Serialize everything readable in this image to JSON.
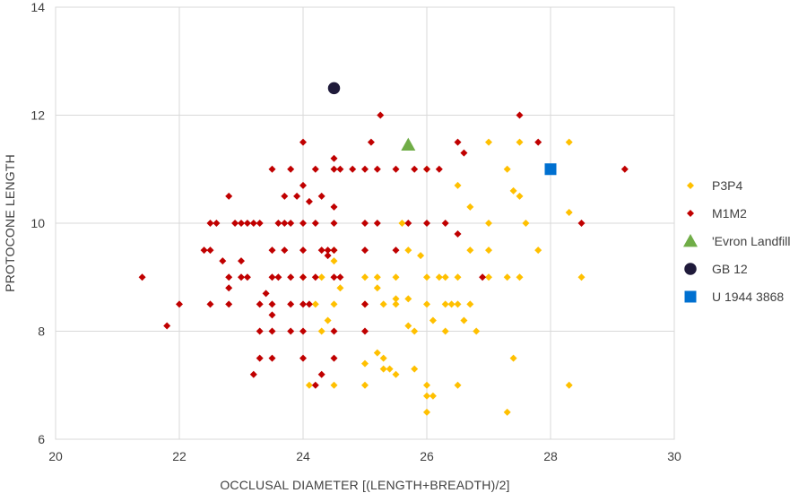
{
  "chart_data": {
    "type": "scatter",
    "xlabel": "OCCLUSAL DIAMETER [(LENGTH+BREADTH)/2]",
    "ylabel": "PROTOCONE LENGTH",
    "xlim": [
      20,
      30
    ],
    "ylim": [
      6,
      14
    ],
    "x_ticks": [
      20,
      22,
      24,
      26,
      28,
      30
    ],
    "y_ticks": [
      6,
      8,
      10,
      12,
      14
    ],
    "grid": true,
    "legend_position": "right",
    "series": [
      {
        "name": "P3P4",
        "marker": "diamond",
        "color": "#FFC000",
        "points": [
          [
            24.0,
            9.0
          ],
          [
            24.2,
            8.5
          ],
          [
            24.3,
            8.0
          ],
          [
            24.4,
            8.2
          ],
          [
            24.5,
            9.5
          ],
          [
            24.5,
            9.3
          ],
          [
            24.5,
            8.5
          ],
          [
            24.5,
            7.0
          ],
          [
            24.6,
            8.8
          ],
          [
            24.1,
            7.0
          ],
          [
            24.3,
            9.0
          ],
          [
            25.0,
            9.0
          ],
          [
            25.0,
            8.5
          ],
          [
            25.0,
            7.4
          ],
          [
            25.0,
            7.0
          ],
          [
            25.2,
            9.0
          ],
          [
            25.2,
            7.6
          ],
          [
            25.3,
            8.5
          ],
          [
            25.3,
            7.5
          ],
          [
            25.3,
            7.3
          ],
          [
            25.4,
            7.3
          ],
          [
            25.5,
            9.0
          ],
          [
            25.5,
            8.6
          ],
          [
            25.5,
            7.2
          ],
          [
            25.7,
            9.5
          ],
          [
            25.7,
            8.1
          ],
          [
            25.8,
            8.0
          ],
          [
            25.8,
            7.3
          ],
          [
            25.5,
            8.5
          ],
          [
            25.2,
            8.8
          ],
          [
            25.7,
            8.6
          ],
          [
            26.0,
            11.0
          ],
          [
            26.0,
            9.0
          ],
          [
            26.0,
            8.5
          ],
          [
            26.0,
            7.0
          ],
          [
            26.0,
            6.5
          ],
          [
            26.0,
            6.8
          ],
          [
            26.1,
            6.8
          ],
          [
            26.1,
            8.2
          ],
          [
            26.2,
            9.0
          ],
          [
            26.3,
            8.5
          ],
          [
            26.3,
            8.0
          ],
          [
            26.5,
            10.7
          ],
          [
            26.5,
            9.0
          ],
          [
            26.5,
            8.5
          ],
          [
            26.5,
            7.0
          ],
          [
            26.6,
            8.2
          ],
          [
            26.7,
            10.3
          ],
          [
            26.7,
            9.5
          ],
          [
            26.7,
            8.5
          ],
          [
            26.8,
            8.0
          ],
          [
            26.3,
            9.0
          ],
          [
            26.4,
            8.5
          ],
          [
            27.0,
            11.5
          ],
          [
            27.0,
            10.0
          ],
          [
            27.0,
            9.5
          ],
          [
            27.0,
            9.0
          ],
          [
            27.3,
            11.0
          ],
          [
            27.3,
            9.0
          ],
          [
            27.3,
            6.5
          ],
          [
            27.4,
            7.5
          ],
          [
            27.4,
            10.6
          ],
          [
            27.5,
            11.5
          ],
          [
            27.5,
            10.5
          ],
          [
            27.5,
            9.0
          ],
          [
            27.6,
            10.0
          ],
          [
            27.8,
            9.5
          ],
          [
            28.3,
            11.5
          ],
          [
            28.3,
            10.2
          ],
          [
            28.3,
            7.0
          ],
          [
            28.5,
            9.0
          ],
          [
            25.9,
            9.4
          ],
          [
            25.6,
            10.0
          ]
        ]
      },
      {
        "name": "M1M2",
        "marker": "diamond",
        "color": "#C00000",
        "points": [
          [
            21.4,
            9.0
          ],
          [
            21.8,
            8.1
          ],
          [
            22.0,
            8.5
          ],
          [
            22.4,
            9.5
          ],
          [
            22.5,
            9.5
          ],
          [
            22.5,
            10.0
          ],
          [
            22.5,
            8.5
          ],
          [
            22.6,
            10.0
          ],
          [
            22.7,
            9.3
          ],
          [
            22.8,
            10.5
          ],
          [
            22.8,
            9.0
          ],
          [
            22.8,
            8.8
          ],
          [
            22.8,
            8.5
          ],
          [
            22.9,
            10.0
          ],
          [
            23.0,
            10.0
          ],
          [
            23.0,
            9.3
          ],
          [
            23.0,
            9.0
          ],
          [
            23.1,
            10.0
          ],
          [
            23.1,
            9.0
          ],
          [
            23.2,
            10.0
          ],
          [
            23.2,
            7.2
          ],
          [
            23.3,
            10.0
          ],
          [
            23.3,
            8.5
          ],
          [
            23.3,
            8.0
          ],
          [
            23.3,
            7.5
          ],
          [
            23.4,
            8.7
          ],
          [
            23.5,
            11.0
          ],
          [
            23.5,
            9.5
          ],
          [
            23.5,
            9.0
          ],
          [
            23.5,
            8.5
          ],
          [
            23.5,
            8.3
          ],
          [
            23.5,
            8.0
          ],
          [
            23.5,
            7.5
          ],
          [
            23.6,
            10.0
          ],
          [
            23.6,
            9.0
          ],
          [
            23.7,
            10.5
          ],
          [
            23.7,
            10.0
          ],
          [
            23.7,
            9.5
          ],
          [
            23.8,
            11.0
          ],
          [
            23.8,
            10.0
          ],
          [
            23.8,
            9.0
          ],
          [
            23.8,
            8.5
          ],
          [
            23.8,
            8.0
          ],
          [
            23.9,
            10.5
          ],
          [
            24.0,
            11.5
          ],
          [
            24.0,
            10.7
          ],
          [
            24.0,
            10.0
          ],
          [
            24.0,
            9.5
          ],
          [
            24.0,
            9.0
          ],
          [
            24.0,
            8.5
          ],
          [
            24.0,
            8.0
          ],
          [
            24.0,
            7.5
          ],
          [
            24.1,
            10.4
          ],
          [
            24.1,
            8.5
          ],
          [
            24.2,
            11.0
          ],
          [
            24.2,
            10.0
          ],
          [
            24.2,
            9.0
          ],
          [
            24.2,
            7.0
          ],
          [
            24.3,
            10.5
          ],
          [
            24.3,
            9.5
          ],
          [
            24.3,
            7.2
          ],
          [
            24.4,
            9.5
          ],
          [
            24.4,
            9.4
          ],
          [
            24.5,
            11.2
          ],
          [
            24.5,
            11.0
          ],
          [
            24.5,
            10.3
          ],
          [
            24.5,
            10.0
          ],
          [
            24.5,
            9.5
          ],
          [
            24.5,
            9.0
          ],
          [
            24.5,
            8.0
          ],
          [
            24.5,
            7.5
          ],
          [
            24.6,
            11.0
          ],
          [
            24.6,
            9.0
          ],
          [
            24.8,
            11.0
          ],
          [
            25.0,
            11.0
          ],
          [
            25.0,
            10.0
          ],
          [
            25.0,
            9.5
          ],
          [
            25.0,
            8.5
          ],
          [
            25.0,
            8.0
          ],
          [
            25.1,
            11.5
          ],
          [
            25.2,
            11.0
          ],
          [
            25.2,
            10.0
          ],
          [
            25.25,
            12.0
          ],
          [
            25.5,
            11.0
          ],
          [
            25.5,
            9.5
          ],
          [
            25.7,
            10.0
          ],
          [
            25.8,
            11.0
          ],
          [
            26.0,
            11.0
          ],
          [
            26.0,
            10.0
          ],
          [
            26.2,
            11.0
          ],
          [
            26.3,
            10.0
          ],
          [
            26.5,
            11.5
          ],
          [
            26.5,
            9.8
          ],
          [
            26.6,
            11.3
          ],
          [
            26.9,
            9.0
          ],
          [
            27.5,
            12.0
          ],
          [
            27.8,
            11.5
          ],
          [
            28.5,
            10.0
          ],
          [
            29.2,
            11.0
          ]
        ]
      },
      {
        "name": "'Evron Landfill",
        "marker": "triangle",
        "color": "#70AD47",
        "points": [
          [
            25.7,
            11.45
          ]
        ]
      },
      {
        "name": "GB 12",
        "marker": "circle",
        "color": "#1F1A3A",
        "points": [
          [
            24.5,
            12.5
          ]
        ]
      },
      {
        "name": "U 1944 3868",
        "marker": "square",
        "color": "#0070D0",
        "points": [
          [
            28.0,
            11.0
          ]
        ]
      }
    ]
  }
}
